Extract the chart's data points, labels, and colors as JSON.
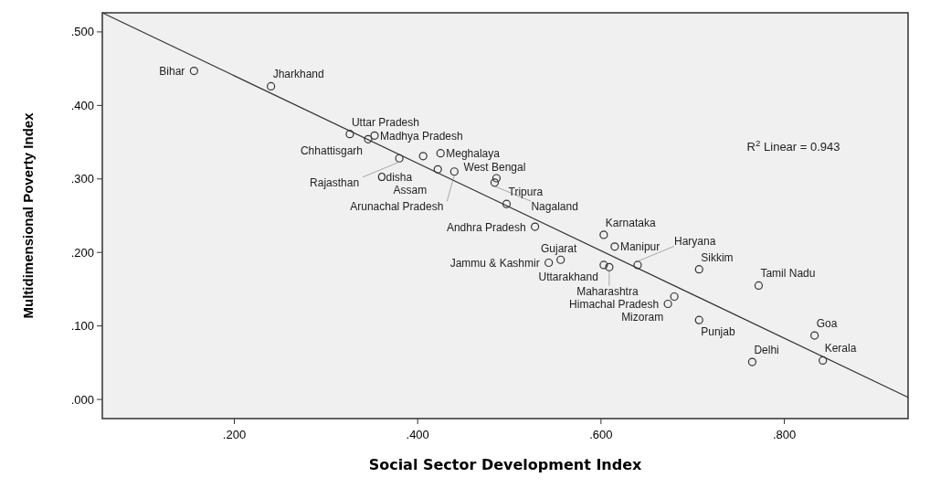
{
  "chart_data": {
    "type": "scatter",
    "xlabel": "Social Sector Development Index",
    "ylabel": "Multidimensional Poverty Index",
    "xlim": [
      0.056,
      0.935
    ],
    "ylim": [
      -0.026,
      0.526
    ],
    "xticks": [
      {
        "value": 0.2,
        "label": ".200"
      },
      {
        "value": 0.4,
        "label": ".400"
      },
      {
        "value": 0.6,
        "label": ".600"
      },
      {
        "value": 0.8,
        "label": ".800"
      }
    ],
    "yticks": [
      {
        "value": 0,
        "label": ".000"
      },
      {
        "value": 0.1,
        "label": ".100"
      },
      {
        "value": 0.2,
        "label": ".200"
      },
      {
        "value": 0.3,
        "label": ".300"
      },
      {
        "value": 0.4,
        "label": ".400"
      },
      {
        "value": 0.5,
        "label": ".500"
      }
    ],
    "grid": false,
    "legend": false,
    "marker": "circle",
    "series": [
      {
        "type": "scatter",
        "color": "#333333",
        "x": [
          0.156,
          0.24,
          0.326,
          0.353,
          0.346,
          0.406,
          0.425,
          0.38,
          0.422,
          0.44,
          0.486,
          0.484,
          0.497,
          0.528,
          0.603,
          0.615,
          0.556,
          0.543,
          0.603,
          0.609,
          0.64,
          0.707,
          0.772,
          0.68,
          0.673,
          0.707,
          0.833,
          0.765,
          0.842
        ],
        "values": [
          0.447,
          0.426,
          0.361,
          0.359,
          0.354,
          0.331,
          0.335,
          0.328,
          0.313,
          0.31,
          0.301,
          0.295,
          0.266,
          0.235,
          0.224,
          0.208,
          0.19,
          0.186,
          0.183,
          0.18,
          0.183,
          0.177,
          0.155,
          0.14,
          0.13,
          0.108,
          0.087,
          0.051,
          0.053
        ]
      },
      {
        "type": "line",
        "color": "#333333",
        "line_style": "solid",
        "marker": "none",
        "x": [
          0.056,
          0.935
        ],
        "values": [
          0.526,
          0.003
        ]
      }
    ],
    "annotations": [
      {
        "text": "Bihar",
        "x": 0.156,
        "y": 0.447
      },
      {
        "text": "Jharkhand",
        "x": 0.24,
        "y": 0.426
      },
      {
        "text": "Uttar Pradesh",
        "x": 0.326,
        "y": 0.361
      },
      {
        "text": "Madhya Pradesh",
        "x": 0.353,
        "y": 0.359
      },
      {
        "text": "Chhattisgarh",
        "x": 0.346,
        "y": 0.354
      },
      {
        "text": "Odisha",
        "x": 0.406,
        "y": 0.331
      },
      {
        "text": "Meghalaya",
        "x": 0.425,
        "y": 0.335
      },
      {
        "text": "Rajasthan",
        "x": 0.38,
        "y": 0.328
      },
      {
        "text": "Assam",
        "x": 0.422,
        "y": 0.313
      },
      {
        "text": "Arunachal Pradesh",
        "x": 0.44,
        "y": 0.31
      },
      {
        "text": "West Bengal",
        "x": 0.486,
        "y": 0.301
      },
      {
        "text": "Nagaland",
        "x": 0.484,
        "y": 0.295
      },
      {
        "text": "Tripura",
        "x": 0.497,
        "y": 0.266
      },
      {
        "text": "Andhra Pradesh",
        "x": 0.528,
        "y": 0.235
      },
      {
        "text": "Karnataka",
        "x": 0.603,
        "y": 0.224
      },
      {
        "text": "Manipur",
        "x": 0.615,
        "y": 0.208
      },
      {
        "text": "Gujarat",
        "x": 0.556,
        "y": 0.19
      },
      {
        "text": "Jammu & Kashmir",
        "x": 0.543,
        "y": 0.186
      },
      {
        "text": "Uttarakhand",
        "x": 0.603,
        "y": 0.183
      },
      {
        "text": "Maharashtra",
        "x": 0.609,
        "y": 0.18
      },
      {
        "text": "Haryana",
        "x": 0.64,
        "y": 0.183
      },
      {
        "text": "Sikkim",
        "x": 0.707,
        "y": 0.177
      },
      {
        "text": "Tamil Nadu",
        "x": 0.772,
        "y": 0.155
      },
      {
        "text": "Mizoram",
        "x": 0.68,
        "y": 0.14
      },
      {
        "text": "Himachal Pradesh",
        "x": 0.673,
        "y": 0.13
      },
      {
        "text": "Punjab",
        "x": 0.707,
        "y": 0.108
      },
      {
        "text": "Goa",
        "x": 0.833,
        "y": 0.087
      },
      {
        "text": "Delhi",
        "x": 0.765,
        "y": 0.051
      },
      {
        "text": "Kerala",
        "x": 0.842,
        "y": 0.053
      },
      "R$^{2}$ Linear = 0.943"
    ]
  }
}
